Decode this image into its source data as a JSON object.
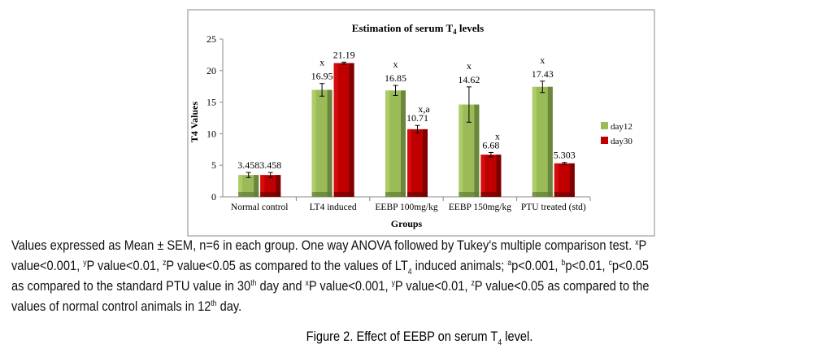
{
  "chart_data": {
    "type": "bar",
    "title": "Estimation of  serum T4 levels",
    "title_main": "Estimation of  serum T",
    "title_sub": "4",
    "title_end": " levels",
    "xlabel": "Groups",
    "ylabel": "T4 Values",
    "ylim": [
      0,
      25
    ],
    "yticks": [
      "0",
      "5",
      "10",
      "15",
      "20",
      "25"
    ],
    "categories": [
      "Normal control",
      "LT4 induced",
      "EEBP 100mg/kg",
      "EEBP 150mg/kg",
      "PTU treated (std)"
    ],
    "legend_position": "right",
    "series": [
      {
        "name": "day12",
        "color": "#9bbb59",
        "values": [
          3.458,
          16.95,
          16.85,
          14.62,
          17.43
        ],
        "errors": [
          0.4,
          1.0,
          0.8,
          2.8,
          0.9
        ],
        "labels": [
          "3.458",
          "16.95",
          "16.85",
          "14.62",
          "17.43"
        ],
        "annotations": [
          "",
          "x",
          "x",
          "x",
          "x"
        ]
      },
      {
        "name": "day30",
        "color": "#c00000",
        "values": [
          3.458,
          21.19,
          10.71,
          6.68,
          5.303
        ],
        "errors": [
          0.4,
          0.15,
          0.6,
          0.35,
          0.15
        ],
        "labels": [
          "3.458",
          "21.19",
          "10.71",
          "6.68",
          "5.303"
        ],
        "annotations": [
          "",
          "",
          "x,a",
          "x",
          ""
        ]
      }
    ]
  },
  "caption": {
    "line1": "Values expressed as Mean ± SEM, n=6 in each group. One way ANOVA followed by Tukey's multiple comparison test. ",
    "line1_sup": "x",
    "line1_end": "P",
    "line2_a": "value<0.001, ",
    "sup_y": "y",
    "line2_b": "P value<0.01, ",
    "sup_z": "z",
    "line2_c": "P value<0.05 as compared to the values of LT",
    "line2_sub": "4",
    "line2_d": " induced animals;  ",
    "a": "a",
    "pa": "p<0.001,  ",
    "b": "b",
    "pb": "p<0.01, ",
    "c": "c",
    "pc": "p<0.05",
    "line3_a": "as compared to the standard PTU value in 30",
    "th": "th",
    "line3_b": " day and ",
    "sup_x": "x",
    "line3_c": "P value<0.001, ",
    "line3_d": "P value<0.01, ",
    "line3_e": "P value<0.05 as compared to the",
    "line4_a": "values of normal control animals in 12",
    "line4_b": " day.",
    "figure_title": "Figure 2. Effect of EEBP on serum T",
    "figure_sub": "4",
    "figure_end": " level."
  }
}
